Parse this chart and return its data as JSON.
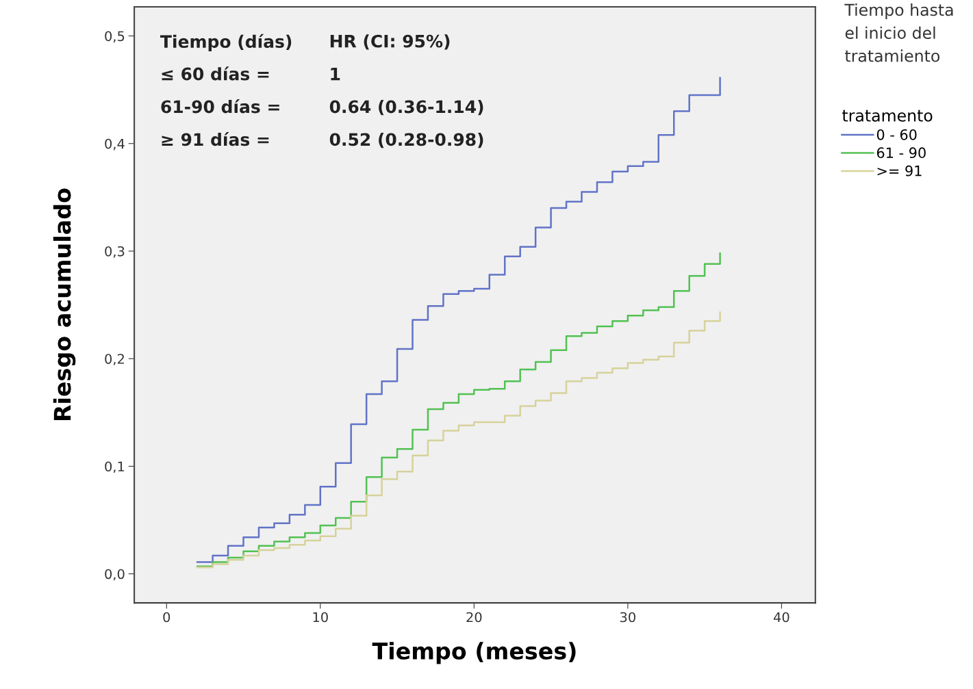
{
  "chart_data": {
    "type": "step",
    "xlabel": "Tiempo (meses)",
    "ylabel": "Riesgo acumulado",
    "legend_title": "tratamento",
    "x": [
      2,
      3,
      4,
      5,
      6,
      7,
      8,
      9,
      10,
      11,
      12,
      13,
      14,
      15,
      16,
      17,
      18,
      19,
      20,
      21,
      22,
      23,
      24,
      25,
      26,
      27,
      28,
      29,
      30,
      31,
      32,
      33,
      34,
      35,
      36
    ],
    "series": [
      {
        "name": "0 - 60",
        "color": "#6173c7",
        "values": [
          0.011,
          0.017,
          0.026,
          0.034,
          0.043,
          0.047,
          0.055,
          0.064,
          0.081,
          0.103,
          0.139,
          0.167,
          0.179,
          0.209,
          0.236,
          0.249,
          0.26,
          0.263,
          0.265,
          0.278,
          0.295,
          0.304,
          0.322,
          0.34,
          0.346,
          0.355,
          0.364,
          0.374,
          0.379,
          0.383,
          0.408,
          0.43,
          0.445,
          0.445,
          0.461
        ]
      },
      {
        "name": "61 - 90",
        "color": "#52c152",
        "values": [
          0.007,
          0.011,
          0.015,
          0.021,
          0.026,
          0.03,
          0.034,
          0.038,
          0.045,
          0.052,
          0.067,
          0.09,
          0.108,
          0.116,
          0.134,
          0.153,
          0.159,
          0.167,
          0.171,
          0.172,
          0.179,
          0.19,
          0.197,
          0.208,
          0.221,
          0.224,
          0.23,
          0.235,
          0.24,
          0.245,
          0.248,
          0.263,
          0.277,
          0.288,
          0.298
        ]
      },
      {
        "name": ">= 91",
        "color": "#d6d29a",
        "values": [
          0.006,
          0.009,
          0.013,
          0.017,
          0.022,
          0.024,
          0.027,
          0.031,
          0.035,
          0.042,
          0.054,
          0.073,
          0.088,
          0.095,
          0.11,
          0.124,
          0.133,
          0.138,
          0.141,
          0.141,
          0.147,
          0.156,
          0.161,
          0.168,
          0.179,
          0.182,
          0.187,
          0.191,
          0.196,
          0.199,
          0.202,
          0.215,
          0.226,
          0.235,
          0.243
        ]
      }
    ],
    "xlim": [
      -2.1,
      42.2
    ],
    "xticks": [
      0,
      10,
      20,
      30,
      40
    ],
    "ylim": [
      -0.027,
      0.527
    ],
    "yticks": [
      {
        "value": 0,
        "label": "0,0"
      },
      {
        "value": 0.1,
        "label": "0,1"
      },
      {
        "value": 0.2,
        "label": "0,2"
      },
      {
        "value": 0.3,
        "label": "0,3"
      },
      {
        "value": 0.4,
        "label": "0,4"
      },
      {
        "value": 0.5,
        "label": "0,5"
      }
    ],
    "grid": false,
    "legend": "right",
    "line_style": "solid",
    "marker": "none",
    "annotations": [
      "Tiempo (días)",
      "HR (CI: 95%)",
      "≤ 60 días =",
      "1",
      "61-90 días =",
      "0.64 (0.36-1.14)",
      "≥ 91 días =",
      "0.52 (0.28-0.98)",
      "Tiempo hasta el inicio del tratamiento"
    ]
  }
}
